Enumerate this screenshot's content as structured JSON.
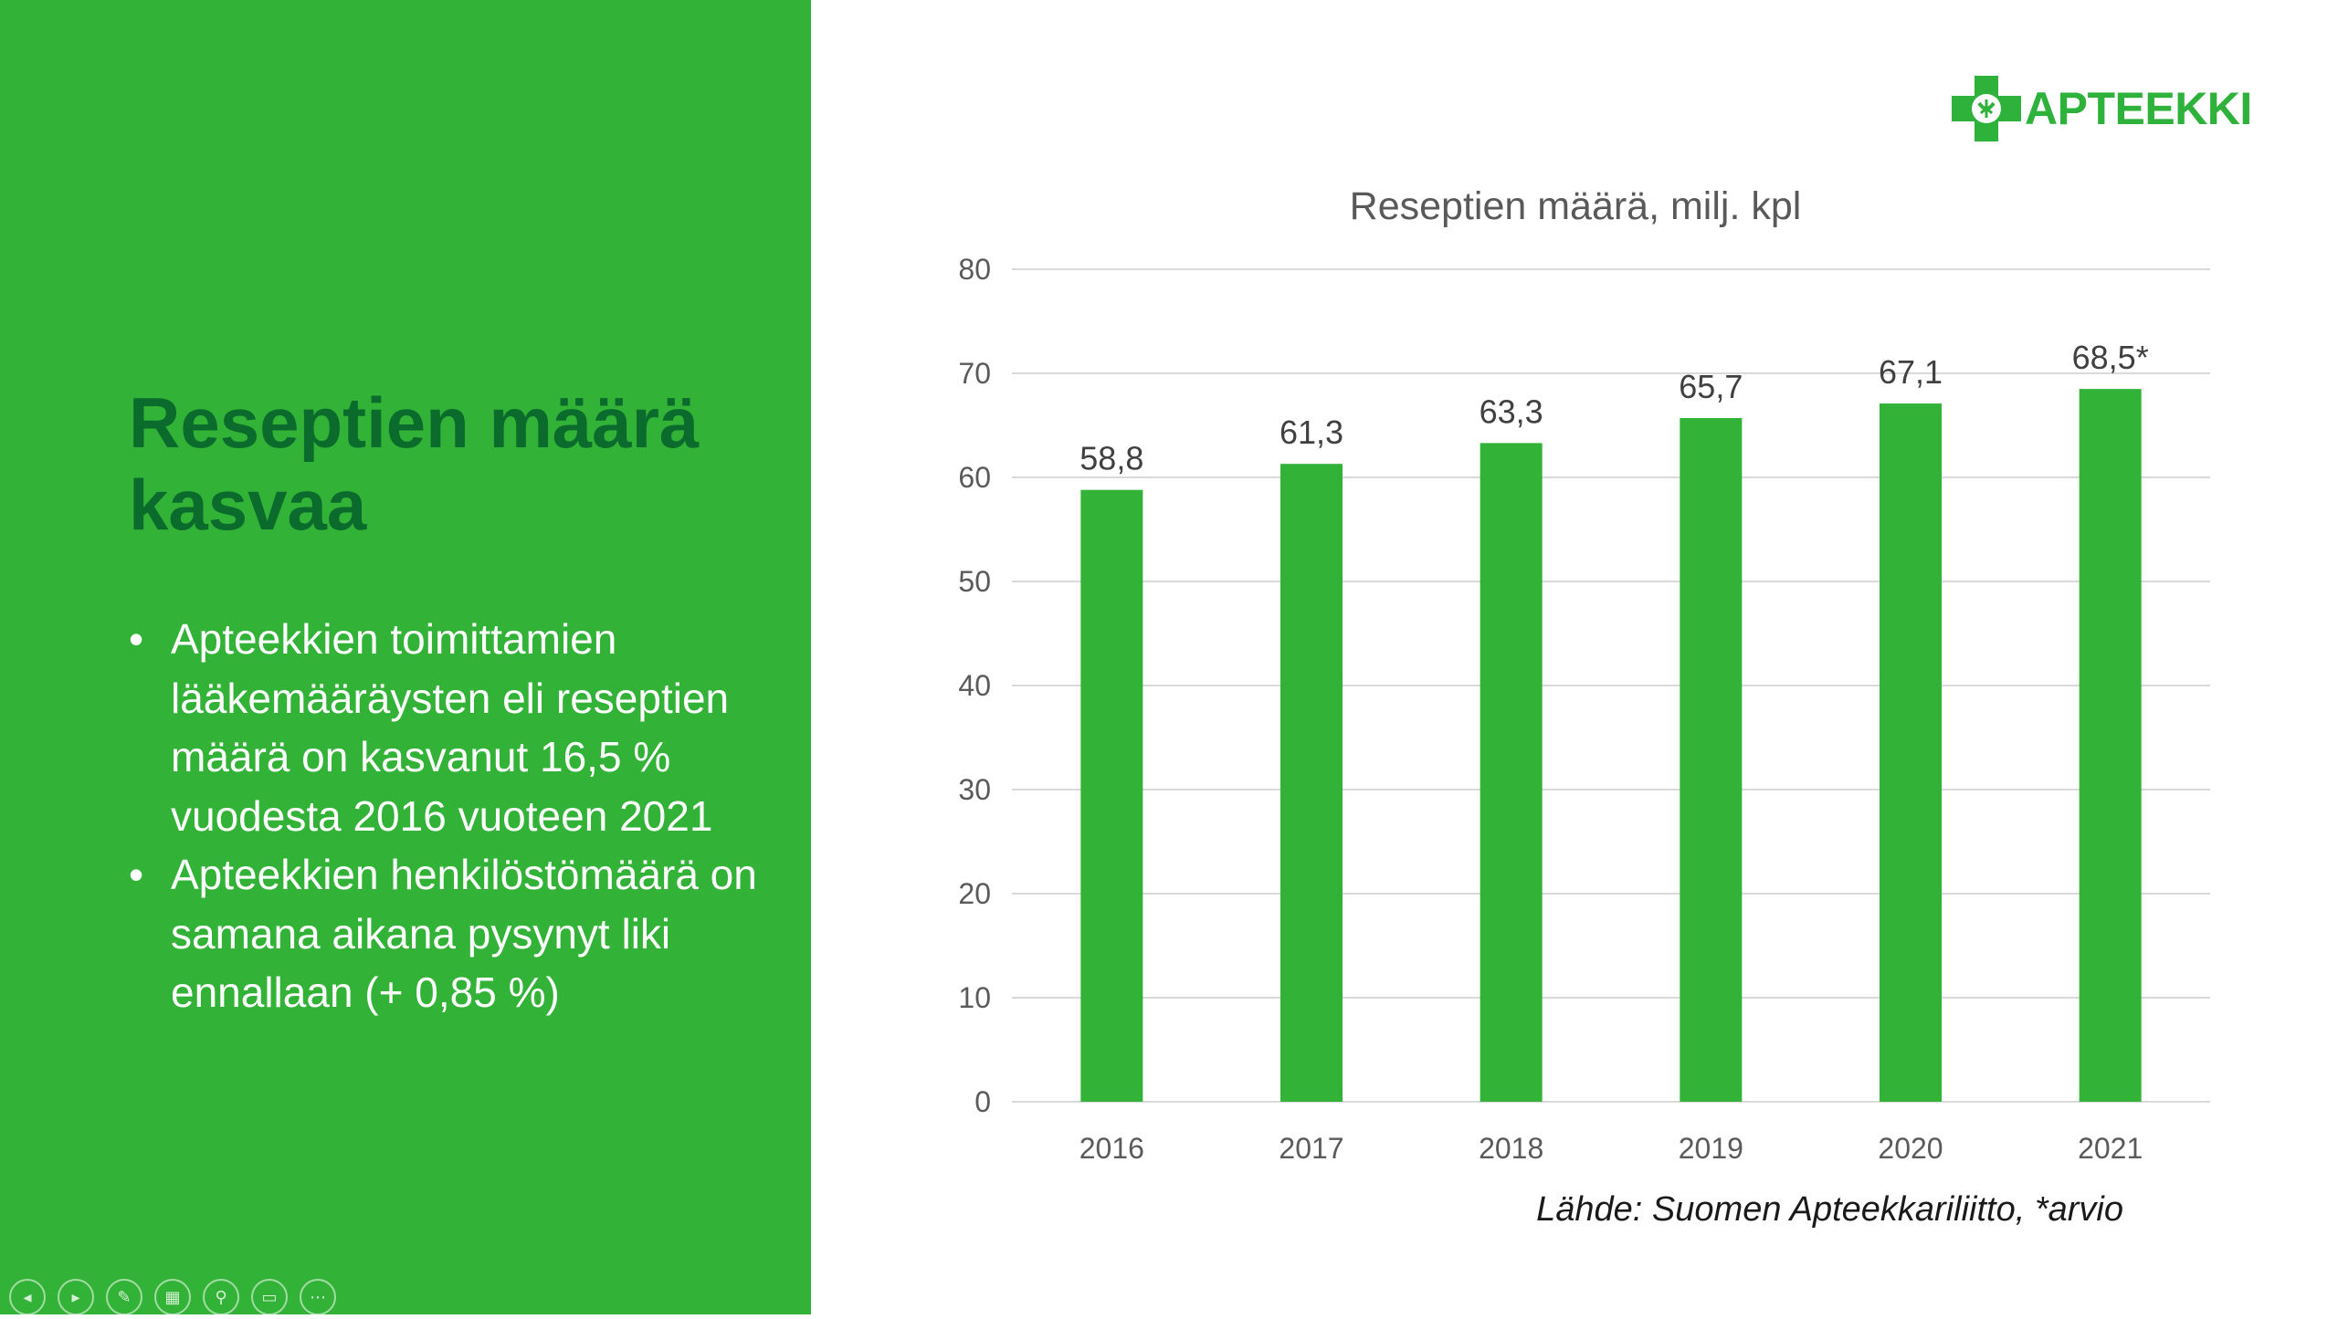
{
  "slide": {
    "title": "Reseptien määrä kasvaa",
    "bullets": [
      "Apteekkien toimittamien lääkemääräysten eli reseptien määrä on kasvanut 16,5 % vuodesta 2016 vuoteen 2021",
      "Apteekkien henkilöstömäärä on samana aikana pysynyt liki ennallaan (+ 0,85 %)"
    ],
    "bullet_symbol": "•"
  },
  "logo": {
    "text": "APTEEKKI",
    "icon": "pharmacy-cross-icon"
  },
  "source_note": "Lähde: Suomen Apteekkariliitto, *arvio",
  "toolbar": [
    {
      "name": "previous-slide-button",
      "icon": "previous-icon",
      "glyph": "◂"
    },
    {
      "name": "next-slide-button",
      "icon": "next-icon",
      "glyph": "▸"
    },
    {
      "name": "pen-button",
      "icon": "pen-icon",
      "glyph": "✎"
    },
    {
      "name": "slides-grid-button",
      "icon": "grid-icon",
      "glyph": "▦"
    },
    {
      "name": "zoom-button",
      "icon": "magnifier-icon",
      "glyph": "⚲"
    },
    {
      "name": "subtitles-button",
      "icon": "subtitles-icon",
      "glyph": "▭"
    },
    {
      "name": "more-options-button",
      "icon": "more-icon",
      "glyph": "⋯"
    }
  ],
  "colors": {
    "panel": "#32b236",
    "title": "#0a6b2c",
    "bar": "#32b236",
    "logo": "#2fb23b"
  },
  "chart_data": {
    "type": "bar",
    "title": "Reseptien määrä, milj. kpl",
    "categories": [
      "2016",
      "2017",
      "2018",
      "2019",
      "2020",
      "2021"
    ],
    "values": [
      58.8,
      61.3,
      63.3,
      65.7,
      67.1,
      68.5
    ],
    "data_labels": [
      "58,8",
      "61,3",
      "63,3",
      "65,7",
      "67,1",
      "68,5*"
    ],
    "y_ticks": [
      0,
      10,
      20,
      30,
      40,
      50,
      60,
      70,
      80
    ],
    "ylim": [
      0,
      80
    ],
    "grid": true,
    "xlabel": "",
    "ylabel": ""
  }
}
